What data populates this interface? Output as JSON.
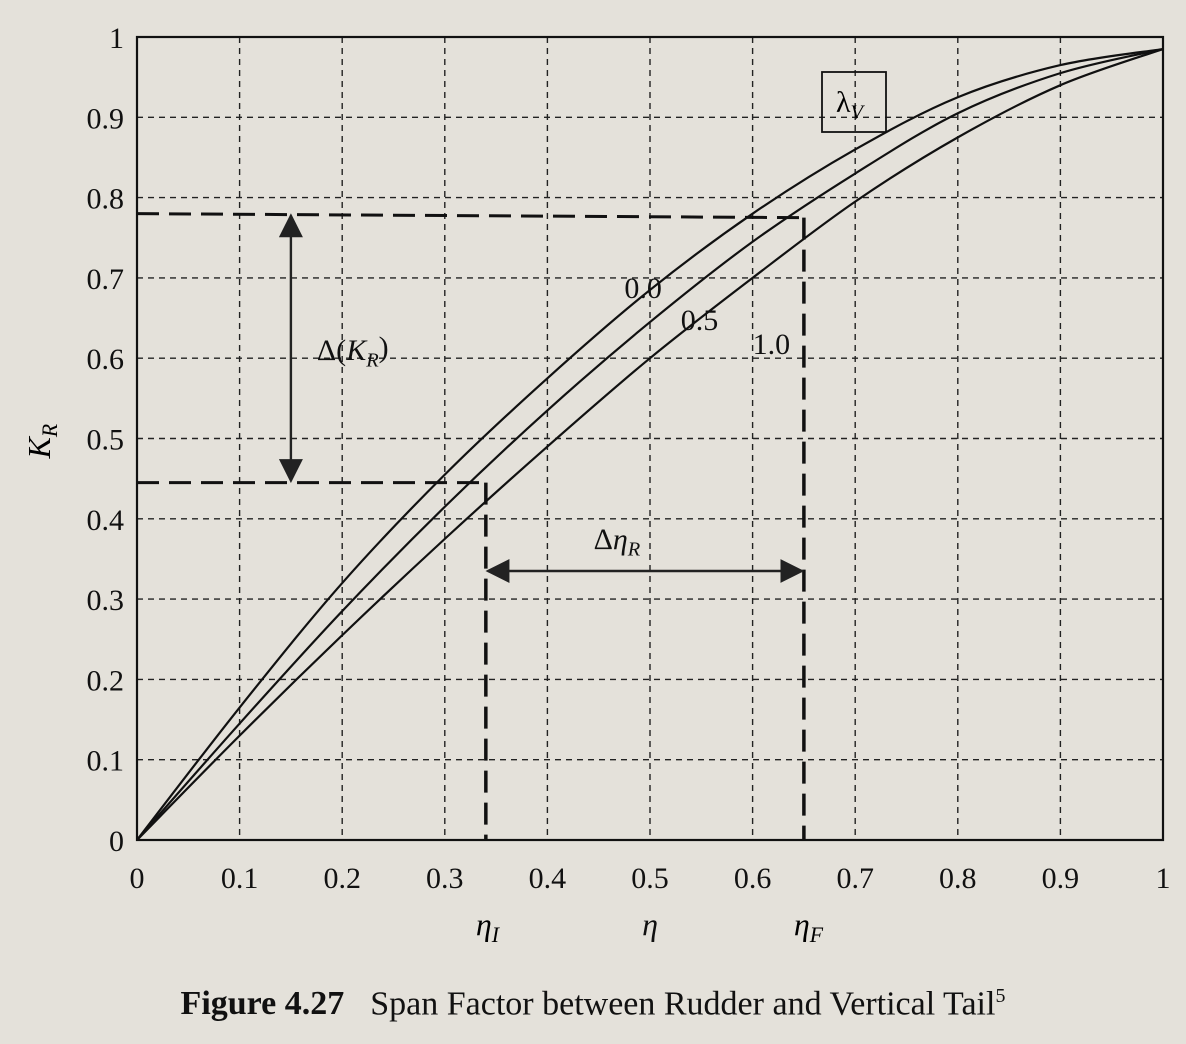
{
  "chart_data": {
    "type": "line",
    "title": "",
    "xlabel": "η",
    "ylabel": "K_R",
    "xlim": [
      0,
      1
    ],
    "ylim": [
      0,
      1
    ],
    "grid": true,
    "x_ticks": [
      "0",
      "0.1",
      "0.2",
      "0.3",
      "0.4",
      "0.5",
      "0.6",
      "0.7",
      "0.8",
      "0.9",
      "1"
    ],
    "y_ticks": [
      "0",
      "0.1",
      "0.2",
      "0.3",
      "0.4",
      "0.5",
      "0.6",
      "0.7",
      "0.8",
      "0.9",
      "1"
    ],
    "legend_title": "λ_V",
    "legend_placement": "top-right",
    "series": [
      {
        "name": "0.0",
        "x": [
          0,
          0.1,
          0.2,
          0.3,
          0.4,
          0.5,
          0.6,
          0.7,
          0.8,
          0.9,
          1.0
        ],
        "values": [
          0,
          0.165,
          0.32,
          0.455,
          0.575,
          0.685,
          0.78,
          0.86,
          0.925,
          0.965,
          0.985
        ]
      },
      {
        "name": "0.5",
        "x": [
          0,
          0.1,
          0.2,
          0.3,
          0.4,
          0.5,
          0.6,
          0.7,
          0.8,
          0.9,
          1.0
        ],
        "values": [
          0,
          0.145,
          0.285,
          0.415,
          0.535,
          0.645,
          0.745,
          0.83,
          0.905,
          0.955,
          0.985
        ]
      },
      {
        "name": "1.0",
        "x": [
          0,
          0.1,
          0.2,
          0.3,
          0.4,
          0.5,
          0.6,
          0.7,
          0.8,
          0.9,
          1.0
        ],
        "values": [
          0,
          0.13,
          0.255,
          0.375,
          0.49,
          0.6,
          0.7,
          0.795,
          0.875,
          0.94,
          0.985
        ]
      }
    ],
    "annotations": {
      "delta_kr": {
        "label": "Δ(K_R)",
        "y_low": 0.445,
        "y_high": 0.78,
        "x": 0.15
      },
      "delta_eta": {
        "label": "Δη_R",
        "x_start": 0.34,
        "x_end": 0.65,
        "y": 0.335
      },
      "eta_i": {
        "label": "η_I",
        "x": 0.34,
        "y_top": 0.445
      },
      "eta_f": {
        "label": "η_F",
        "x": 0.65,
        "y_top": 0.775
      }
    }
  },
  "caption": {
    "figure_number": "Figure 4.27",
    "text": "Span Factor between Rudder and Vertical Tail",
    "superscript": "5"
  }
}
